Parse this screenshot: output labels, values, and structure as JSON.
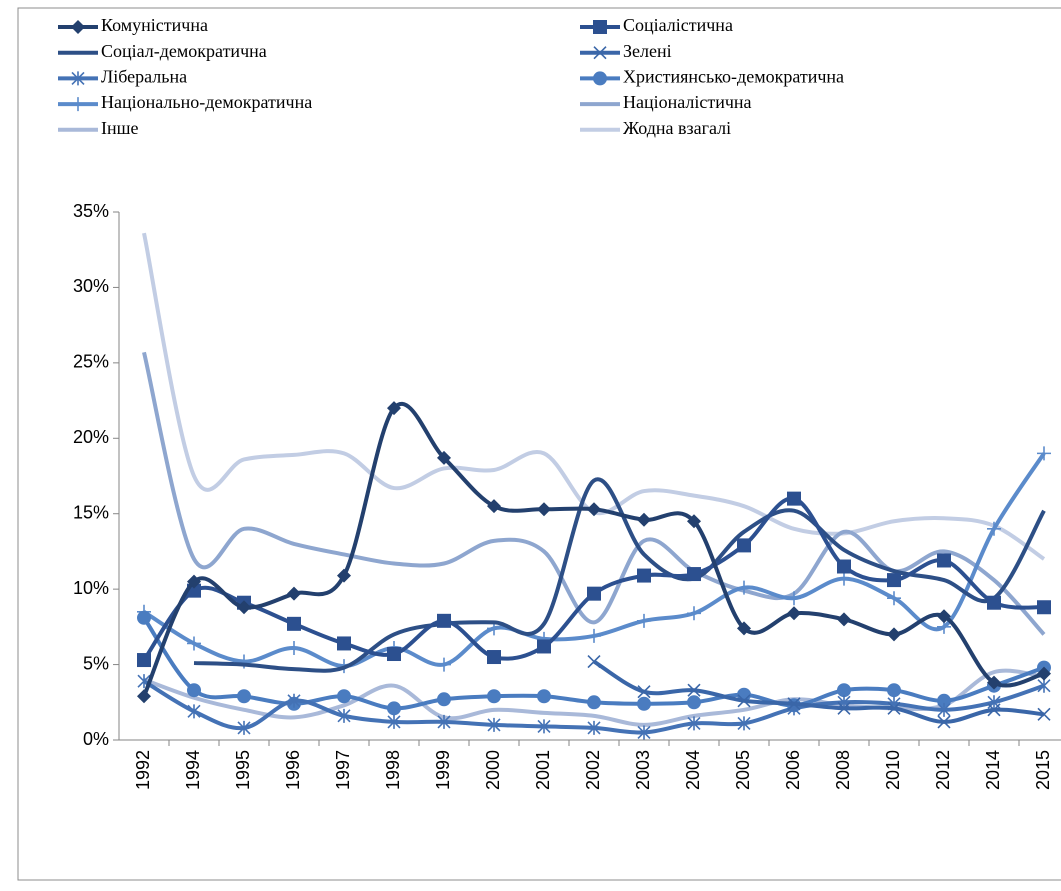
{
  "chart_data": {
    "type": "line",
    "categories": [
      "1992",
      "1994",
      "1995",
      "1996",
      "1997",
      "1998",
      "1999",
      "2000",
      "2001",
      "2002",
      "2003",
      "2004",
      "2005",
      "2006",
      "2008",
      "2010",
      "2012",
      "2014",
      "2015"
    ],
    "ylim": [
      0,
      35
    ],
    "yticks": [
      {
        "value": 0,
        "label": "0%"
      },
      {
        "value": 5,
        "label": "5%"
      },
      {
        "value": 10,
        "label": "10%"
      },
      {
        "value": 15,
        "label": "15%"
      },
      {
        "value": 20,
        "label": "20%"
      },
      {
        "value": 25,
        "label": "25%"
      },
      {
        "value": 30,
        "label": "30%"
      },
      {
        "value": 35,
        "label": "35%"
      }
    ],
    "series": [
      {
        "name": "Комуністична",
        "color": "#23406e",
        "marker": "diamond",
        "values": [
          2.9,
          10.5,
          8.8,
          9.7,
          10.9,
          22.0,
          18.7,
          15.5,
          15.3,
          15.3,
          14.6,
          14.5,
          7.4,
          8.4,
          8.0,
          7.0,
          8.2,
          3.8,
          4.4
        ]
      },
      {
        "name": "Соціалістична",
        "color": "#2c5090",
        "marker": "square",
        "values": [
          5.3,
          9.9,
          9.1,
          7.7,
          6.4,
          5.7,
          7.9,
          5.5,
          6.2,
          9.7,
          10.9,
          11.0,
          12.9,
          16.0,
          11.5,
          10.6,
          11.9,
          9.1,
          8.8
        ]
      },
      {
        "name": "Соціал-демократична",
        "color": "#2d4f86",
        "marker": "none",
        "values": [
          null,
          5.1,
          5.0,
          4.7,
          4.8,
          7.0,
          7.7,
          7.8,
          7.7,
          17.2,
          12.3,
          10.7,
          13.8,
          15.2,
          12.6,
          11.2,
          10.6,
          9.4,
          15.2
        ]
      },
      {
        "name": "Зелені",
        "color": "#3a66a8",
        "marker": "x",
        "values": [
          null,
          null,
          null,
          null,
          null,
          null,
          null,
          null,
          null,
          5.2,
          3.2,
          3.3,
          2.6,
          2.4,
          2.1,
          2.1,
          1.2,
          2.0,
          1.7
        ]
      },
      {
        "name": "Ліберальна",
        "color": "#4472b5",
        "marker": "star",
        "values": [
          3.9,
          1.9,
          0.8,
          2.6,
          1.6,
          1.2,
          1.2,
          1.0,
          0.9,
          0.8,
          0.5,
          1.1,
          1.1,
          2.1,
          2.5,
          2.4,
          2.0,
          2.5,
          3.6
        ]
      },
      {
        "name": "Християнсько-демократична",
        "color": "#4a7cc0",
        "marker": "circle",
        "values": [
          8.1,
          3.3,
          2.9,
          2.4,
          2.9,
          2.1,
          2.7,
          2.9,
          2.9,
          2.5,
          2.4,
          2.5,
          3.0,
          2.3,
          3.3,
          3.3,
          2.6,
          3.6,
          4.8
        ]
      },
      {
        "name": "Національно-демократична",
        "color": "#5b8bcb",
        "marker": "plus",
        "values": [
          8.5,
          6.4,
          5.2,
          6.1,
          4.9,
          6.1,
          5.0,
          7.4,
          6.7,
          6.9,
          7.9,
          8.4,
          10.1,
          9.4,
          10.7,
          9.4,
          7.5,
          14.0,
          19.0
        ]
      },
      {
        "name": "Націоналістична",
        "color": "#8ea6cf",
        "marker": "none",
        "values": [
          25.7,
          12.0,
          14.0,
          13.0,
          12.3,
          11.7,
          11.7,
          13.2,
          12.5,
          7.8,
          13.2,
          11.2,
          9.9,
          9.7,
          13.8,
          11.2,
          12.5,
          10.6,
          7.0
        ]
      },
      {
        "name": "Інше",
        "color": "#a9b9d9",
        "marker": "none",
        "values": [
          4.0,
          2.8,
          2.0,
          1.5,
          2.3,
          3.6,
          1.5,
          2.0,
          1.8,
          1.6,
          1.0,
          1.6,
          2.0,
          2.7,
          2.3,
          2.1,
          2.3,
          4.5,
          4.2
        ]
      },
      {
        "name": "Жодна взагалі",
        "color": "#c2cde4",
        "marker": "none",
        "values": [
          33.6,
          17.5,
          18.6,
          18.9,
          19.0,
          16.7,
          18.0,
          17.9,
          19.0,
          15.1,
          16.5,
          16.2,
          15.5,
          14.0,
          13.7,
          14.5,
          14.7,
          14.2,
          12.0
        ]
      }
    ]
  }
}
